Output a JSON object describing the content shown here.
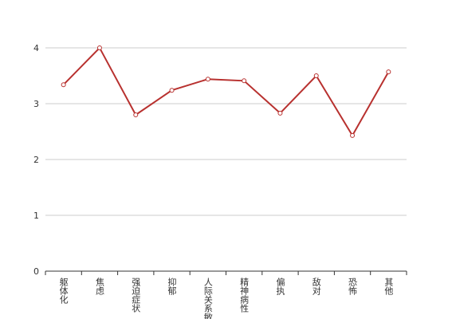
{
  "chart_data": {
    "type": "line",
    "categories": [
      "躯体化",
      "焦虑",
      "强迫症状",
      "抑郁",
      "人际关系敏感",
      "精神病性",
      "偏执",
      "敌对",
      "恐怖",
      "其他"
    ],
    "series": [
      {
        "color": "#b8312f",
        "values": [
          3.34,
          4.0,
          2.8,
          3.24,
          3.44,
          3.41,
          2.83,
          3.5,
          2.43,
          3.57
        ]
      }
    ],
    "ylim": [
      0,
      4
    ],
    "yticks": [
      0,
      1,
      2,
      3,
      4
    ],
    "grid": true
  }
}
